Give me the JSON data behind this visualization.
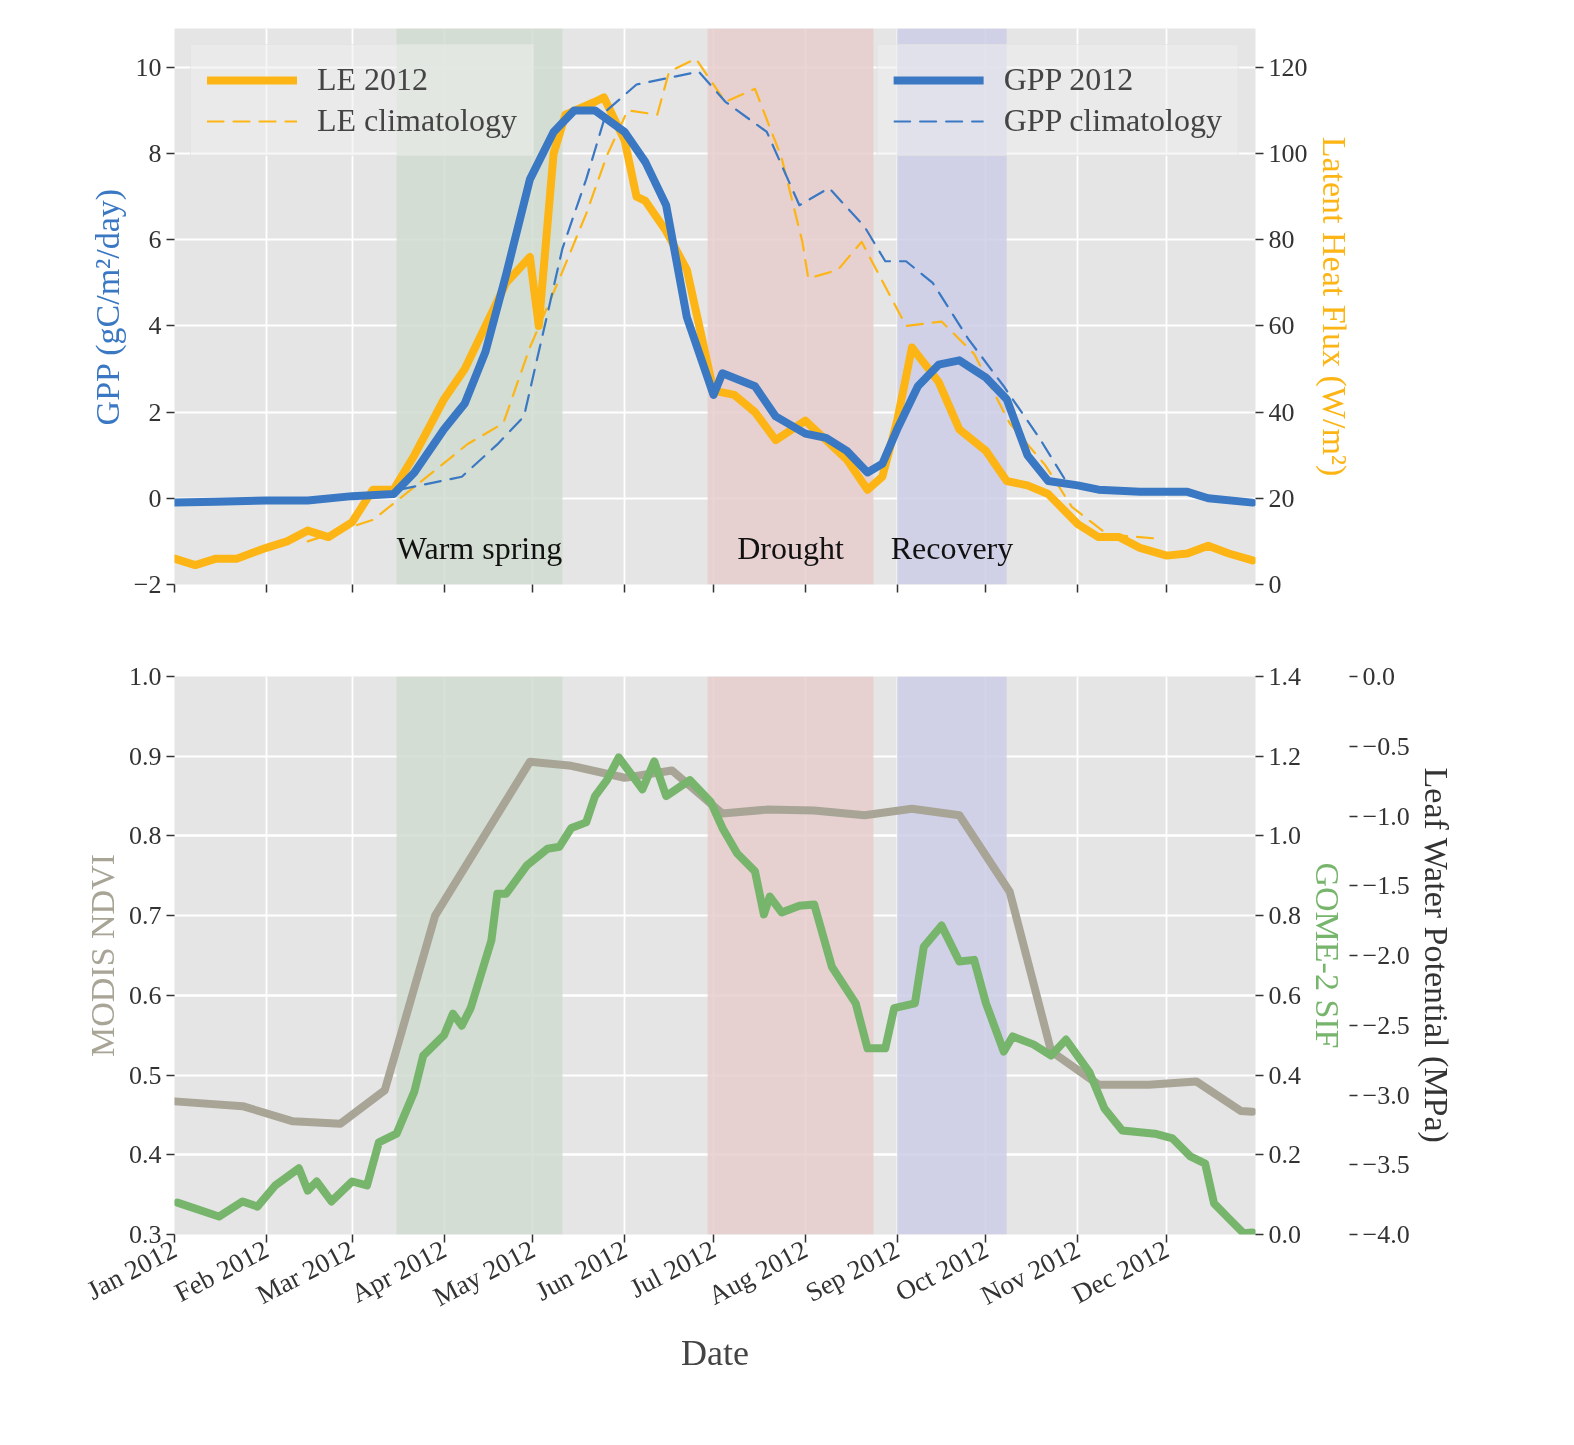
{
  "chart_data": [
    {
      "type": "line",
      "ylabel": "GPP (gC/m²/day)",
      "y2label": "Latent Heat Flux (W/m²)",
      "xlim": [
        "2012-01-01",
        "2012-12-31"
      ],
      "xticks": [
        "2012-01-01",
        "2012-02-01",
        "2012-03-01",
        "2012-04-01",
        "2012-05-01",
        "2012-06-01",
        "2012-07-01",
        "2012-08-01",
        "2012-09-01",
        "2012-10-01",
        "2012-11-01",
        "2012-12-01"
      ],
      "tick_labels": "y",
      "ylim": [
        -2,
        10.9
      ],
      "yticks": [
        {
          "value": -2,
          "label": "−2"
        },
        0,
        2,
        4,
        6,
        8,
        10
      ],
      "y2lim": [
        0,
        129
      ],
      "y2ticks": [
        0,
        20,
        40,
        60,
        80,
        100,
        120
      ],
      "grid": true,
      "legend": "top",
      "bands": [
        {
          "axis": "x",
          "from": "2012-03-16",
          "to": "2012-05-11",
          "label": "Warm spring",
          "color": "#d0dcd0"
        },
        {
          "axis": "x",
          "from": "2012-06-29",
          "to": "2012-08-24",
          "label": "Drought",
          "color": "#e6cccd"
        },
        {
          "axis": "x",
          "from": "2012-09-01",
          "to": "2012-10-08",
          "label": "Recovery",
          "color": "#cdcde6"
        }
      ],
      "series": [
        {
          "name": "LE 2012",
          "color": "#fdb515",
          "axis": "y2",
          "line_style": "solid",
          "x": [
            "2012-01-01",
            "2012-01-08",
            "2012-01-15",
            "2012-01-22",
            "2012-02-01",
            "2012-02-08",
            "2012-02-15",
            "2012-02-22",
            "2012-03-01",
            "2012-03-08",
            "2012-03-15",
            "2012-03-22",
            "2012-04-01",
            "2012-04-08",
            "2012-04-15",
            "2012-04-22",
            "2012-04-30",
            "2012-05-03",
            "2012-05-08",
            "2012-05-12",
            "2012-05-22",
            "2012-05-25",
            "2012-06-01",
            "2012-06-05",
            "2012-06-08",
            "2012-06-15",
            "2012-06-22",
            "2012-07-01",
            "2012-07-08",
            "2012-07-15",
            "2012-07-22",
            "2012-08-01",
            "2012-08-08",
            "2012-08-15",
            "2012-08-22",
            "2012-08-27",
            "2012-09-01",
            "2012-09-06",
            "2012-09-15",
            "2012-09-22",
            "2012-10-01",
            "2012-10-08",
            "2012-10-15",
            "2012-10-22",
            "2012-11-01",
            "2012-11-08",
            "2012-11-15",
            "2012-11-22",
            "2012-12-01",
            "2012-12-08",
            "2012-12-15",
            "2012-12-22",
            "2012-12-30"
          ],
          "values": [
            6,
            4.5,
            6,
            6,
            8.5,
            10,
            12.5,
            11,
            14.5,
            22,
            22,
            30,
            43,
            50,
            60,
            70,
            76,
            60,
            100,
            109,
            112,
            113,
            103,
            90,
            89,
            82,
            73,
            45,
            44,
            40,
            33.5,
            38,
            33.5,
            29,
            22,
            25,
            38,
            55,
            47,
            36,
            31,
            24,
            23,
            21,
            14,
            11,
            11,
            8.5,
            6.7,
            7.2,
            9,
            7.2,
            5.6
          ]
        },
        {
          "name": "LE climatology",
          "color": "#fdb515",
          "axis": "y2",
          "line_style": "dashed",
          "x": [
            "2012-02-15",
            "2012-03-08",
            "2012-03-19",
            "2012-04-09",
            "2012-04-21",
            "2012-04-30",
            "2012-05-10",
            "2012-05-19",
            "2012-05-26",
            "2012-06-02",
            "2012-06-12",
            "2012-06-16",
            "2012-06-25",
            "2012-07-05",
            "2012-07-15",
            "2012-07-24",
            "2012-07-31",
            "2012-08-02",
            "2012-08-12",
            "2012-08-20",
            "2012-08-30",
            "2012-09-04",
            "2012-09-16",
            "2012-09-27",
            "2012-10-09",
            "2012-10-21",
            "2012-10-30",
            "2012-11-11",
            "2012-11-27"
          ],
          "values": [
            10,
            15,
            21,
            32.6,
            37.4,
            55,
            71,
            86,
            99.5,
            110,
            109,
            119,
            122,
            112,
            115,
            99,
            79.5,
            71,
            73,
            79.5,
            66.5,
            60,
            61,
            53.5,
            37.4,
            27.7,
            18,
            11.6,
            10.7
          ]
        },
        {
          "name": "GPP 2012",
          "color": "#3a78c3",
          "axis": "y",
          "line_style": "solid",
          "x": [
            "2012-01-01",
            "2012-01-15",
            "2012-02-01",
            "2012-02-15",
            "2012-03-01",
            "2012-03-15",
            "2012-03-22",
            "2012-04-01",
            "2012-04-08",
            "2012-04-15",
            "2012-04-22",
            "2012-04-30",
            "2012-05-08",
            "2012-05-15",
            "2012-05-22",
            "2012-06-01",
            "2012-06-08",
            "2012-06-15",
            "2012-06-22",
            "2012-07-01",
            "2012-07-04",
            "2012-07-15",
            "2012-07-22",
            "2012-08-01",
            "2012-08-08",
            "2012-08-15",
            "2012-08-22",
            "2012-08-27",
            "2012-09-01",
            "2012-09-08",
            "2012-09-15",
            "2012-09-22",
            "2012-10-01",
            "2012-10-08",
            "2012-10-15",
            "2012-10-22",
            "2012-11-01",
            "2012-11-08",
            "2012-11-22",
            "2012-12-01",
            "2012-12-08",
            "2012-12-15",
            "2012-12-30"
          ],
          "values": [
            -0.1,
            -0.08,
            -0.05,
            -0.05,
            0.05,
            0.1,
            0.6,
            1.6,
            2.2,
            3.4,
            5.2,
            7.4,
            8.5,
            9.0,
            9.0,
            8.5,
            7.8,
            6.8,
            4.2,
            2.4,
            2.9,
            2.6,
            1.9,
            1.5,
            1.4,
            1.1,
            0.6,
            0.8,
            1.6,
            2.6,
            3.1,
            3.2,
            2.8,
            2.3,
            1.0,
            0.4,
            0.3,
            0.2,
            0.15,
            0.15,
            0.15,
            0.0,
            -0.1
          ]
        },
        {
          "name": "GPP climatology",
          "color": "#3a78c3",
          "axis": "y",
          "line_style": "dashed",
          "x": [
            "2012-03-17",
            "2012-04-07",
            "2012-04-19",
            "2012-04-28",
            "2012-05-11",
            "2012-05-19",
            "2012-05-26",
            "2012-06-05",
            "2012-06-26",
            "2012-07-05",
            "2012-07-19",
            "2012-07-30",
            "2012-08-09",
            "2012-08-21",
            "2012-08-28",
            "2012-09-04",
            "2012-09-13",
            "2012-09-25",
            "2012-10-07",
            "2012-10-19",
            "2012-10-28"
          ],
          "values": [
            0.2,
            0.5,
            1.25,
            1.9,
            5.8,
            7.4,
            9.0,
            9.6,
            9.9,
            9.2,
            8.5,
            6.8,
            7.2,
            6.3,
            5.5,
            5.5,
            5.0,
            3.7,
            2.6,
            1.4,
            0.4
          ]
        }
      ]
    },
    {
      "type": "line",
      "xlabel": "Date",
      "ylabel": "MODIS NDVI",
      "y2label": "GOME-2 SIF",
      "y3label": "Leaf Water Potential (MPa)",
      "xlim": [
        "2012-01-01",
        "2012-12-31"
      ],
      "xticks": [
        {
          "value": "2012-01-01",
          "label": "Jan 2012"
        },
        {
          "value": "2012-02-01",
          "label": "Feb 2012"
        },
        {
          "value": "2012-03-01",
          "label": "Mar 2012"
        },
        {
          "value": "2012-04-01",
          "label": "Apr 2012"
        },
        {
          "value": "2012-05-01",
          "label": "May 2012"
        },
        {
          "value": "2012-06-01",
          "label": "Jun 2012"
        },
        {
          "value": "2012-07-01",
          "label": "Jul 2012"
        },
        {
          "value": "2012-08-01",
          "label": "Aug 2012"
        },
        {
          "value": "2012-09-01",
          "label": "Sep 2012"
        },
        {
          "value": "2012-10-01",
          "label": "Oct 2012"
        },
        {
          "value": "2012-11-01",
          "label": "Nov 2012"
        },
        {
          "value": "2012-12-01",
          "label": "Dec 2012"
        }
      ],
      "ylim": [
        0.3,
        1.0
      ],
      "yticks": [
        0.3,
        0.4,
        0.5,
        0.6,
        0.7,
        0.8,
        0.9,
        {
          "value": 1.0,
          "label": "1.0"
        }
      ],
      "y2lim": [
        0,
        1.4
      ],
      "y2ticks": [
        {
          "value": 0,
          "label": "0.0"
        },
        0.2,
        0.4,
        0.6,
        0.8,
        {
          "value": 1.0,
          "label": "1.0"
        },
        1.2,
        1.4
      ],
      "y3lim": [
        -4,
        0
      ],
      "y3ticks": [
        {
          "value": -4,
          "label": "−4.0"
        },
        {
          "value": -3.5,
          "label": "−3.5"
        },
        {
          "value": -3,
          "label": "−3.0"
        },
        {
          "value": -2.5,
          "label": "−2.5"
        },
        {
          "value": -2,
          "label": "−2.0"
        },
        {
          "value": -1.5,
          "label": "−1.5"
        },
        {
          "value": -1,
          "label": "−1.0"
        },
        {
          "value": -0.5,
          "label": "−0.5"
        },
        {
          "value": 0,
          "label": "0.0"
        }
      ],
      "grid": true,
      "bands": [
        {
          "axis": "x",
          "from": "2012-03-16",
          "to": "2012-05-11",
          "color": "#d0dcd0"
        },
        {
          "axis": "x",
          "from": "2012-06-29",
          "to": "2012-08-24",
          "color": "#e6cccd"
        },
        {
          "axis": "x",
          "from": "2012-09-01",
          "to": "2012-10-08",
          "color": "#cdcde6"
        }
      ],
      "series": [
        {
          "color": "#a8a496",
          "axis": "y",
          "line_style": "solid",
          "x": [
            "2012-01-01",
            "2012-01-24",
            "2012-02-10",
            "2012-02-26",
            "2012-03-12",
            "2012-03-29",
            "2012-04-30",
            "2012-05-14",
            "2012-06-01",
            "2012-06-17",
            "2012-07-04",
            "2012-07-19",
            "2012-08-04",
            "2012-08-21",
            "2012-09-06",
            "2012-09-22",
            "2012-10-09",
            "2012-10-23",
            "2012-11-08",
            "2012-11-25",
            "2012-12-11",
            "2012-12-26",
            "2012-12-30"
          ],
          "values": [
            0.467,
            0.461,
            0.442,
            0.439,
            0.481,
            0.7,
            0.893,
            0.888,
            0.873,
            0.882,
            0.828,
            0.833,
            0.832,
            0.826,
            0.834,
            0.826,
            0.73,
            0.53,
            0.488,
            0.488,
            0.492,
            0.455,
            0.454
          ]
        },
        {
          "color": "#77b56c",
          "axis": "y2",
          "line_style": "solid",
          "x": [
            "2012-01-02",
            "2012-01-16",
            "2012-01-24",
            "2012-01-29",
            "2012-02-04",
            "2012-02-12",
            "2012-02-15",
            "2012-02-18",
            "2012-02-23",
            "2012-03-01",
            "2012-03-06",
            "2012-03-10",
            "2012-03-16",
            "2012-03-22",
            "2012-03-25",
            "2012-04-01",
            "2012-04-04",
            "2012-04-07",
            "2012-04-10",
            "2012-04-17",
            "2012-04-19",
            "2012-04-22",
            "2012-04-29",
            "2012-05-06",
            "2012-05-10",
            "2012-05-14",
            "2012-05-19",
            "2012-05-22",
            "2012-05-26",
            "2012-05-30",
            "2012-06-07",
            "2012-06-11",
            "2012-06-15",
            "2012-06-23",
            "2012-06-30",
            "2012-07-04",
            "2012-07-09",
            "2012-07-15",
            "2012-07-18",
            "2012-07-20",
            "2012-07-24",
            "2012-07-30",
            "2012-08-04",
            "2012-08-10",
            "2012-08-18",
            "2012-08-22",
            "2012-08-28",
            "2012-08-31",
            "2012-09-07",
            "2012-09-10",
            "2012-09-16",
            "2012-09-22",
            "2012-09-27",
            "2012-10-01",
            "2012-10-07",
            "2012-10-10",
            "2012-10-17",
            "2012-10-23",
            "2012-10-28",
            "2012-11-05",
            "2012-11-10",
            "2012-11-16",
            "2012-11-27",
            "2012-12-03",
            "2012-12-09",
            "2012-12-14",
            "2012-12-17",
            "2012-12-22",
            "2012-12-27",
            "2012-12-30"
          ],
          "values": [
            0.08,
            0.045,
            0.083,
            0.07,
            0.123,
            0.166,
            0.11,
            0.133,
            0.083,
            0.133,
            0.123,
            0.231,
            0.253,
            0.359,
            0.449,
            0.5,
            0.554,
            0.524,
            0.568,
            0.738,
            0.855,
            0.855,
            0.926,
            0.968,
            0.973,
            1.02,
            1.034,
            1.1,
            1.14,
            1.197,
            1.117,
            1.187,
            1.1,
            1.14,
            1.086,
            1.02,
            0.956,
            0.911,
            0.803,
            0.848,
            0.808,
            0.825,
            0.828,
            0.671,
            0.58,
            0.467,
            0.467,
            0.568,
            0.58,
            0.722,
            0.775,
            0.685,
            0.689,
            0.58,
            0.459,
            0.497,
            0.477,
            0.449,
            0.489,
            0.406,
            0.316,
            0.261,
            0.253,
            0.241,
            0.196,
            0.178,
            0.078,
            0.04,
            0.003,
            0.005
          ]
        }
      ]
    }
  ]
}
